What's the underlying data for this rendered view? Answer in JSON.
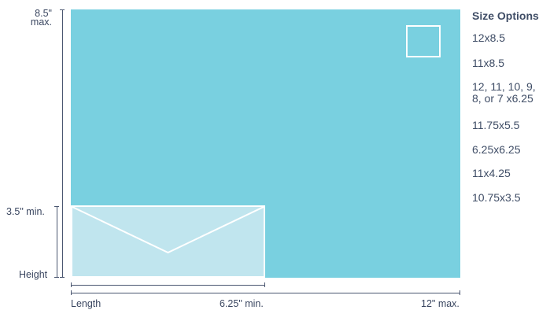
{
  "card": {
    "fill": "#79d0e0",
    "envelope_fill": "#c0e5ee"
  },
  "vertical_axis": {
    "top_label": "8.5\"",
    "top_sub_label": "max.",
    "min_label": "3.5\" min.",
    "bottom_label": "Height"
  },
  "horizontal_axis": {
    "left_label": "Length",
    "min_label": "6.25\" min.",
    "max_label": "12\" max."
  },
  "size_options": {
    "title": "Size Options",
    "items": [
      {
        "line1": "12x8.5",
        "line2": ""
      },
      {
        "line1": "11x8.5",
        "line2": ""
      },
      {
        "line1": "12, 11, 10, 9,",
        "line2": "8, or 7 x6.25"
      },
      {
        "line1": "11.75x5.5",
        "line2": ""
      },
      {
        "line1": "6.25x6.25",
        "line2": ""
      },
      {
        "line1": "11x4.25",
        "line2": ""
      },
      {
        "line1": "10.75x3.5",
        "line2": ""
      }
    ]
  }
}
